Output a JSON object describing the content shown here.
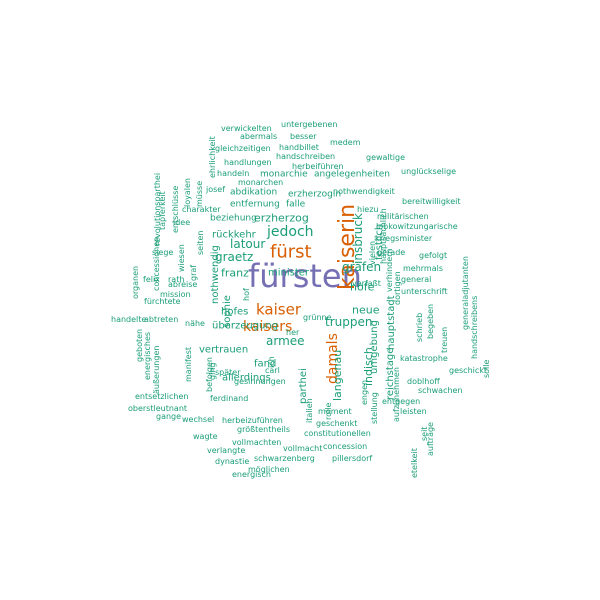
{
  "colors": {
    "primary": "#7570b3",
    "secondary": "#d95f02",
    "tertiary": "#1b9e77"
  },
  "words": [
    {
      "text": "fürsten",
      "c": "primary"
    },
    {
      "text": "kaiserin",
      "c": "secondary"
    },
    {
      "text": "fürst",
      "c": "secondary"
    },
    {
      "text": "kaiser",
      "c": "secondary"
    },
    {
      "text": "kaisers",
      "c": "secondary"
    },
    {
      "text": "damals",
      "c": "secondary"
    },
    {
      "text": "jedoch",
      "c": "tertiary"
    },
    {
      "text": "truppen",
      "c": "tertiary"
    },
    {
      "text": "graetz",
      "c": "tertiary"
    },
    {
      "text": "latour",
      "c": "tertiary"
    },
    {
      "text": "grafen",
      "c": "tertiary"
    },
    {
      "text": "insbruck",
      "c": "tertiary"
    },
    {
      "text": "armee",
      "c": "tertiary"
    },
    {
      "text": "franz",
      "c": "tertiary"
    },
    {
      "text": "hofe",
      "c": "tertiary"
    },
    {
      "text": "neue",
      "c": "tertiary"
    },
    {
      "text": "langenau",
      "c": "tertiary"
    },
    {
      "text": "indisch",
      "c": "tertiary"
    },
    {
      "text": "erzherzog",
      "c": "tertiary"
    },
    {
      "text": "rückkehr",
      "c": "tertiary"
    },
    {
      "text": "minister",
      "c": "tertiary"
    },
    {
      "text": "hofes",
      "c": "tertiary"
    },
    {
      "text": "überzeugung",
      "c": "tertiary"
    },
    {
      "text": "vertrauen",
      "c": "tertiary"
    },
    {
      "text": "parthei",
      "c": "tertiary"
    },
    {
      "text": "allerdings",
      "c": "tertiary"
    },
    {
      "text": "fand",
      "c": "tertiary"
    },
    {
      "text": "umgebung",
      "c": "tertiary"
    },
    {
      "text": "reichstage",
      "c": "tertiary"
    },
    {
      "text": "hauptstadt",
      "c": "tertiary"
    },
    {
      "text": "festlich",
      "c": "tertiary"
    },
    {
      "text": "nothwendig",
      "c": "tertiary"
    },
    {
      "text": "sophie",
      "c": "tertiary"
    },
    {
      "text": "erzherzogin",
      "c": "tertiary"
    },
    {
      "text": "abdikation",
      "c": "tertiary"
    },
    {
      "text": "entfernung",
      "c": "tertiary"
    },
    {
      "text": "falle",
      "c": "tertiary"
    },
    {
      "text": "beziehung",
      "c": "tertiary"
    },
    {
      "text": "monarchie",
      "c": "tertiary"
    },
    {
      "text": "angelegenheiten",
      "c": "tertiary"
    },
    {
      "text": "handlungen",
      "c": "tertiary"
    },
    {
      "text": "handbillet",
      "c": "tertiary"
    },
    {
      "text": "gleichzeitigen",
      "c": "tertiary"
    },
    {
      "text": "abermals",
      "c": "tertiary"
    },
    {
      "text": "besser",
      "c": "tertiary"
    },
    {
      "text": "medem",
      "c": "tertiary"
    },
    {
      "text": "verwickelten",
      "c": "tertiary"
    },
    {
      "text": "untergebenen",
      "c": "tertiary"
    },
    {
      "text": "handschreiben",
      "c": "tertiary"
    },
    {
      "text": "herbeiführen",
      "c": "tertiary"
    },
    {
      "text": "gewaltige",
      "c": "tertiary"
    },
    {
      "text": "unglückselige",
      "c": "tertiary"
    },
    {
      "text": "handeln",
      "c": "tertiary"
    },
    {
      "text": "monarchen",
      "c": "tertiary"
    },
    {
      "text": "josef",
      "c": "tertiary"
    },
    {
      "text": "ehrlichkeit",
      "c": "tertiary"
    },
    {
      "text": "nothwendigkeit",
      "c": "tertiary"
    },
    {
      "text": "bereitwilligkeit",
      "c": "tertiary"
    },
    {
      "text": "militärischen",
      "c": "tertiary"
    },
    {
      "text": "lobkowitzungarische",
      "c": "tertiary"
    },
    {
      "text": "kriegsminister",
      "c": "tertiary"
    },
    {
      "text": "hiezu",
      "c": "tertiary"
    },
    {
      "text": "gerade",
      "c": "tertiary"
    },
    {
      "text": "gefolgt",
      "c": "tertiary"
    },
    {
      "text": "mehrmals",
      "c": "tertiary"
    },
    {
      "text": "general",
      "c": "tertiary"
    },
    {
      "text": "unterschrift",
      "c": "tertiary"
    },
    {
      "text": "verfaßt",
      "c": "tertiary"
    },
    {
      "text": "charakter",
      "c": "tertiary"
    },
    {
      "text": "idee",
      "c": "tertiary"
    },
    {
      "text": "mission",
      "c": "tertiary"
    },
    {
      "text": "abreise",
      "c": "tertiary"
    },
    {
      "text": "fürchtete",
      "c": "tertiary"
    },
    {
      "text": "felix",
      "c": "tertiary"
    },
    {
      "text": "rath",
      "c": "tertiary"
    },
    {
      "text": "siege",
      "c": "tertiary"
    },
    {
      "text": "abtreten",
      "c": "tertiary"
    },
    {
      "text": "handelte",
      "c": "tertiary"
    },
    {
      "text": "nähe",
      "c": "tertiary"
    },
    {
      "text": "manifest",
      "c": "tertiary"
    },
    {
      "text": "später",
      "c": "tertiary"
    },
    {
      "text": "carl",
      "c": "tertiary"
    },
    {
      "text": "ferdinand",
      "c": "tertiary"
    },
    {
      "text": "gesinnungen",
      "c": "tertiary"
    },
    {
      "text": "herbeizuführen",
      "c": "tertiary"
    },
    {
      "text": "größtentheils",
      "c": "tertiary"
    },
    {
      "text": "vollmachten",
      "c": "tertiary"
    },
    {
      "text": "vollmacht",
      "c": "tertiary"
    },
    {
      "text": "concession",
      "c": "tertiary"
    },
    {
      "text": "constitutionellen",
      "c": "tertiary"
    },
    {
      "text": "geschenkt",
      "c": "tertiary"
    },
    {
      "text": "moment",
      "c": "tertiary"
    },
    {
      "text": "schwarzenberg",
      "c": "tertiary"
    },
    {
      "text": "pillersdorf",
      "c": "tertiary"
    },
    {
      "text": "dynastie",
      "c": "tertiary"
    },
    {
      "text": "verlangte",
      "c": "tertiary"
    },
    {
      "text": "möglichen",
      "c": "tertiary"
    },
    {
      "text": "energisch",
      "c": "tertiary"
    },
    {
      "text": "wagte",
      "c": "tertiary"
    },
    {
      "text": "wechsel",
      "c": "tertiary"
    },
    {
      "text": "gange",
      "c": "tertiary"
    },
    {
      "text": "oberstleutnant",
      "c": "tertiary"
    },
    {
      "text": "entsetzlichen",
      "c": "tertiary"
    },
    {
      "text": "befolgen",
      "c": "tertiary"
    },
    {
      "text": "ging",
      "c": "tertiary"
    },
    {
      "text": "äußerungen",
      "c": "tertiary"
    },
    {
      "text": "energisches",
      "c": "tertiary"
    },
    {
      "text": "geboten",
      "c": "tertiary"
    },
    {
      "text": "doblhoff",
      "c": "tertiary"
    },
    {
      "text": "entgegen",
      "c": "tertiary"
    },
    {
      "text": "leisten",
      "c": "tertiary"
    },
    {
      "text": "schwachen",
      "c": "tertiary"
    },
    {
      "text": "katastrophe",
      "c": "tertiary"
    },
    {
      "text": "geschickt",
      "c": "tertiary"
    },
    {
      "text": "treuen",
      "c": "tertiary"
    },
    {
      "text": "begeben",
      "c": "tertiary"
    },
    {
      "text": "schrieb",
      "c": "tertiary"
    },
    {
      "text": "dortigen",
      "c": "tertiary"
    },
    {
      "text": "verhindern",
      "c": "tertiary"
    },
    {
      "text": "generaladjutanten",
      "c": "tertiary"
    },
    {
      "text": "handschreibens",
      "c": "tertiary"
    },
    {
      "text": "solle",
      "c": "tertiary"
    },
    {
      "text": "her",
      "c": "tertiary"
    },
    {
      "text": "grünne",
      "c": "tertiary"
    },
    {
      "text": "italien",
      "c": "tertiary"
    },
    {
      "text": "rolle",
      "c": "tertiary"
    },
    {
      "text": "engen",
      "c": "tertiary"
    },
    {
      "text": "stellung",
      "c": "tertiary"
    },
    {
      "text": "aufzunehmen",
      "c": "tertiary"
    },
    {
      "text": "etelkeit",
      "c": "tertiary"
    },
    {
      "text": "aufträge",
      "c": "tertiary"
    },
    {
      "text": "seit",
      "c": "tertiary"
    },
    {
      "text": "vielen",
      "c": "tertiary"
    },
    {
      "text": "hauptsächlich",
      "c": "tertiary"
    },
    {
      "text": "organen",
      "c": "tertiary"
    },
    {
      "text": "concessionen",
      "c": "tertiary"
    },
    {
      "text": "revolutionsparthei",
      "c": "tertiary"
    },
    {
      "text": "entschlüsse",
      "c": "tertiary"
    },
    {
      "text": "tapferkeit",
      "c": "tertiary"
    },
    {
      "text": "loyalen",
      "c": "tertiary"
    },
    {
      "text": "müsse",
      "c": "tertiary"
    },
    {
      "text": "seiten",
      "c": "tertiary"
    },
    {
      "text": "wiesen",
      "c": "tertiary"
    },
    {
      "text": "graf",
      "c": "tertiary"
    },
    {
      "text": "hof",
      "c": "tertiary"
    },
    {
      "text": "ich",
      "c": "tertiary"
    }
  ]
}
